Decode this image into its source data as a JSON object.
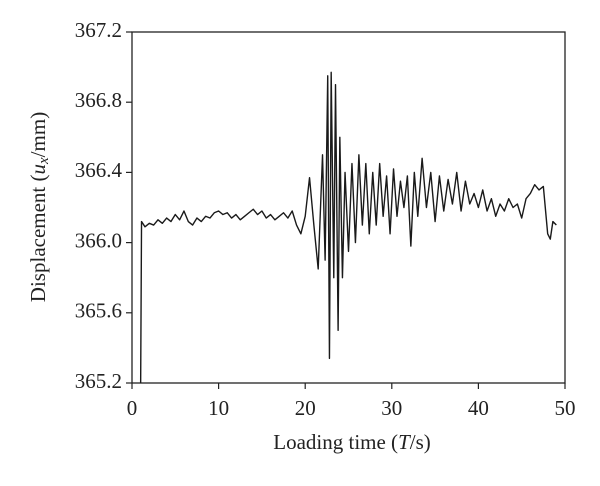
{
  "chart_data": {
    "type": "line",
    "x_label": [
      "Loading time (",
      "T",
      "/s)"
    ],
    "y_label": [
      "Displacement (",
      "u",
      "x",
      "/mm)"
    ],
    "xlim": [
      0,
      50
    ],
    "xticks": [
      0,
      10,
      20,
      30,
      40,
      50
    ],
    "ylim": [
      365.2,
      367.2
    ],
    "yticks": [
      365.2,
      365.6,
      {
        "value": 366,
        "label": "366.0"
      },
      366.4,
      366.8,
      367.2
    ],
    "series": [
      {
        "color": "#1a1a1a",
        "x": [
          1.0,
          1.1,
          1.5,
          2,
          2.5,
          3,
          3.5,
          4,
          4.5,
          5,
          5.5,
          6,
          6.5,
          7,
          7.5,
          8,
          8.5,
          9,
          9.5,
          10,
          10.5,
          11,
          11.5,
          12,
          12.5,
          13,
          13.5,
          14,
          14.5,
          15,
          15.5,
          16,
          16.5,
          17,
          17.5,
          18,
          18.5,
          19,
          19.5,
          20,
          20.5,
          21,
          21.5,
          22,
          22.3,
          22.6,
          22.8,
          23,
          23.3,
          23.5,
          23.8,
          24,
          24.3,
          24.6,
          25,
          25.4,
          25.8,
          26.2,
          26.6,
          27,
          27.4,
          27.8,
          28.2,
          28.6,
          29,
          29.4,
          29.8,
          30.2,
          30.6,
          31,
          31.4,
          31.8,
          32.2,
          32.6,
          33,
          33.5,
          34,
          34.5,
          35,
          35.5,
          36,
          36.5,
          37,
          37.5,
          38,
          38.5,
          39,
          39.5,
          40,
          40.5,
          41,
          41.5,
          42,
          42.5,
          43,
          43.5,
          44,
          44.5,
          45,
          45.5,
          46,
          46.5,
          47,
          47.5,
          48,
          48.3,
          48.6,
          49
        ],
        "values": [
          365.2,
          366.12,
          366.09,
          366.11,
          366.1,
          366.13,
          366.11,
          366.14,
          366.12,
          366.16,
          366.13,
          366.18,
          366.12,
          366.1,
          366.14,
          366.12,
          366.15,
          366.14,
          366.17,
          366.18,
          366.16,
          366.17,
          366.14,
          366.16,
          366.13,
          366.15,
          366.17,
          366.19,
          366.16,
          366.18,
          366.14,
          366.16,
          366.13,
          366.15,
          366.17,
          366.14,
          366.18,
          366.1,
          366.05,
          366.15,
          366.37,
          366.1,
          365.85,
          366.5,
          365.9,
          366.95,
          365.34,
          366.97,
          365.8,
          366.9,
          365.5,
          366.6,
          365.8,
          366.4,
          365.95,
          366.45,
          366.0,
          366.5,
          366.1,
          366.45,
          366.05,
          366.4,
          366.1,
          366.45,
          366.15,
          366.38,
          366.05,
          366.42,
          366.15,
          366.35,
          366.2,
          366.38,
          365.98,
          366.4,
          366.15,
          366.48,
          366.2,
          366.4,
          366.12,
          366.38,
          366.18,
          366.36,
          366.22,
          366.4,
          366.18,
          366.35,
          366.22,
          366.28,
          366.2,
          366.3,
          366.18,
          366.25,
          366.15,
          366.22,
          366.18,
          366.25,
          366.2,
          366.22,
          366.14,
          366.25,
          366.28,
          366.33,
          366.3,
          366.32,
          366.05,
          366.02,
          366.12,
          366.1
        ]
      }
    ]
  }
}
